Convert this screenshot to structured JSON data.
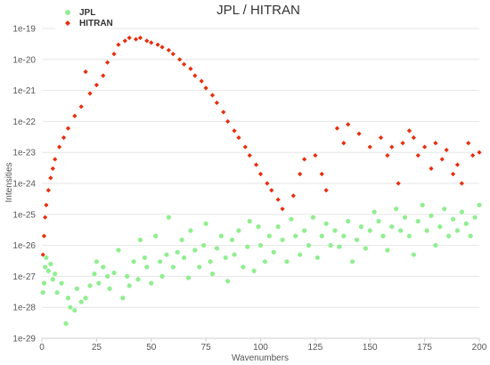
{
  "chart_data": {
    "type": "scatter",
    "title": "JPL / HITRAN",
    "xlabel": "Wavenumbers",
    "ylabel": "Intensities",
    "xlim": [
      0,
      200
    ],
    "ylim": [
      1e-29,
      1e-19
    ],
    "yscale": "log",
    "x_ticks": [
      "0",
      "25",
      "50",
      "75",
      "100",
      "125",
      "150",
      "175",
      "200"
    ],
    "y_ticks": [
      "1e-19",
      "1e-20",
      "1e-21",
      "1e-22",
      "1e-23",
      "1e-24",
      "1e-25",
      "1e-26",
      "1e-27",
      "1e-28",
      "1e-29"
    ],
    "grid": "horizontal",
    "legend_position": "top-left",
    "series": [
      {
        "name": "JPL",
        "color": "#90ee90",
        "points": [
          [
            0.5,
            3e-28
          ],
          [
            1,
            6e-28
          ],
          [
            1.5,
            2e-27
          ],
          [
            2,
            4e-27
          ],
          [
            3,
            1.5e-27
          ],
          [
            4,
            2.5e-27
          ],
          [
            5,
            8e-28
          ],
          [
            6,
            1.2e-27
          ],
          [
            7,
            3e-28
          ],
          [
            9,
            6e-28
          ],
          [
            11,
            3e-29
          ],
          [
            12,
            2e-28
          ],
          [
            13,
            1e-28
          ],
          [
            15,
            8e-29
          ],
          [
            16,
            4e-28
          ],
          [
            18,
            1.5e-28
          ],
          [
            20,
            2e-28
          ],
          [
            22,
            5e-28
          ],
          [
            24,
            1.2e-27
          ],
          [
            25,
            3e-27
          ],
          [
            26,
            6e-28
          ],
          [
            28,
            2e-27
          ],
          [
            30,
            1e-27
          ],
          [
            31,
            4e-28
          ],
          [
            33,
            1.3e-27
          ],
          [
            35,
            7e-27
          ],
          [
            37,
            2e-28
          ],
          [
            39,
            1e-27
          ],
          [
            40,
            5e-28
          ],
          [
            42,
            3e-27
          ],
          [
            44,
            8e-28
          ],
          [
            45,
            1.5e-26
          ],
          [
            47,
            4e-27
          ],
          [
            48,
            2e-27
          ],
          [
            50,
            6e-28
          ],
          [
            52,
            2e-26
          ],
          [
            54,
            3e-27
          ],
          [
            55,
            1e-27
          ],
          [
            57,
            5e-27
          ],
          [
            58,
            8e-26
          ],
          [
            60,
            2e-27
          ],
          [
            62,
            6e-27
          ],
          [
            64,
            1.5e-26
          ],
          [
            65,
            4e-27
          ],
          [
            67,
            9e-28
          ],
          [
            68,
            3e-26
          ],
          [
            70,
            7e-27
          ],
          [
            72,
            2e-27
          ],
          [
            74,
            1e-26
          ],
          [
            75,
            5e-26
          ],
          [
            77,
            3e-27
          ],
          [
            78,
            1.2e-27
          ],
          [
            80,
            8e-27
          ],
          [
            82,
            2e-26
          ],
          [
            84,
            4e-27
          ],
          [
            85,
            7e-28
          ],
          [
            87,
            1.5e-26
          ],
          [
            88,
            5e-27
          ],
          [
            90,
            3e-26
          ],
          [
            92,
            2e-27
          ],
          [
            94,
            9e-27
          ],
          [
            95,
            6e-26
          ],
          [
            97,
            1.5e-27
          ],
          [
            99,
            4e-26
          ],
          [
            100,
            1e-26
          ],
          [
            102,
            3e-27
          ],
          [
            104,
            2e-26
          ],
          [
            106,
            6e-27
          ],
          [
            108,
            4e-26
          ],
          [
            110,
            1.5e-26
          ],
          [
            112,
            3e-27
          ],
          [
            114,
            7e-26
          ],
          [
            116,
            2e-26
          ],
          [
            118,
            5e-27
          ],
          [
            120,
            3e-26
          ],
          [
            122,
            1e-26
          ],
          [
            124,
            8e-26
          ],
          [
            126,
            4e-27
          ],
          [
            128,
            2e-26
          ],
          [
            130,
            5e-26
          ],
          [
            132,
            1e-26
          ],
          [
            134,
            3e-26
          ],
          [
            136,
            9e-27
          ],
          [
            138,
            2e-26
          ],
          [
            140,
            6e-26
          ],
          [
            142,
            3e-27
          ],
          [
            144,
            1.5e-26
          ],
          [
            146,
            4e-26
          ],
          [
            148,
            8e-27
          ],
          [
            150,
            3e-26
          ],
          [
            152,
            1.2e-25
          ],
          [
            154,
            6e-26
          ],
          [
            156,
            2e-26
          ],
          [
            158,
            7e-27
          ],
          [
            160,
            4e-26
          ],
          [
            162,
            1.5e-25
          ],
          [
            164,
            3e-26
          ],
          [
            166,
            8e-26
          ],
          [
            168,
            2e-26
          ],
          [
            170,
            5e-27
          ],
          [
            172,
            6e-26
          ],
          [
            174,
            2e-25
          ],
          [
            176,
            3e-26
          ],
          [
            178,
            9e-26
          ],
          [
            180,
            1e-26
          ],
          [
            182,
            4e-26
          ],
          [
            184,
            1.5e-25
          ],
          [
            186,
            2e-26
          ],
          [
            188,
            7e-26
          ],
          [
            190,
            3e-26
          ],
          [
            192,
            1.2e-25
          ],
          [
            194,
            5e-26
          ],
          [
            196,
            2e-26
          ],
          [
            198,
            8e-26
          ],
          [
            200,
            2e-25
          ]
        ]
      },
      {
        "name": "HITRAN",
        "color": "#e82d0c",
        "points": [
          [
            0.5,
            5e-27
          ],
          [
            1,
            2e-26
          ],
          [
            1.5,
            8e-26
          ],
          [
            2,
            2e-25
          ],
          [
            3,
            6e-25
          ],
          [
            4,
            1.5e-24
          ],
          [
            5,
            3e-24
          ],
          [
            6,
            6e-24
          ],
          [
            8,
            1.5e-23
          ],
          [
            10,
            3e-23
          ],
          [
            12,
            6e-23
          ],
          [
            15,
            1.5e-22
          ],
          [
            18,
            3e-22
          ],
          [
            20,
            4e-21
          ],
          [
            22,
            8e-22
          ],
          [
            25,
            1.5e-21
          ],
          [
            28,
            3e-21
          ],
          [
            30,
            8e-21
          ],
          [
            33,
            1.5e-20
          ],
          [
            35,
            3e-20
          ],
          [
            38,
            4e-20
          ],
          [
            40,
            5e-20
          ],
          [
            43,
            4.5e-20
          ],
          [
            45,
            5e-20
          ],
          [
            48,
            4e-20
          ],
          [
            50,
            3.5e-20
          ],
          [
            53,
            3e-20
          ],
          [
            55,
            2.5e-20
          ],
          [
            58,
            2e-20
          ],
          [
            60,
            1.5e-20
          ],
          [
            63,
            1e-20
          ],
          [
            65,
            7e-21
          ],
          [
            68,
            5e-21
          ],
          [
            70,
            3e-21
          ],
          [
            73,
            2e-21
          ],
          [
            75,
            1.2e-21
          ],
          [
            78,
            7e-22
          ],
          [
            80,
            4e-22
          ],
          [
            83,
            2e-22
          ],
          [
            85,
            1e-22
          ],
          [
            88,
            5e-23
          ],
          [
            90,
            3e-23
          ],
          [
            93,
            1.5e-23
          ],
          [
            95,
            8e-24
          ],
          [
            98,
            4e-24
          ],
          [
            100,
            2e-24
          ],
          [
            103,
            1e-24
          ],
          [
            105,
            6e-25
          ],
          [
            108,
            3e-25
          ],
          [
            110,
            1.5e-25
          ],
          [
            115,
            4e-25
          ],
          [
            118,
            2e-24
          ],
          [
            120,
            6e-24
          ],
          [
            125,
            8e-24
          ],
          [
            128,
            2e-24
          ],
          [
            130,
            6e-25
          ],
          [
            135,
            6e-23
          ],
          [
            138,
            2e-23
          ],
          [
            140,
            8e-23
          ],
          [
            145,
            4e-23
          ],
          [
            150,
            1.5e-23
          ],
          [
            155,
            3e-23
          ],
          [
            158,
            8e-24
          ],
          [
            160,
            1.5e-23
          ],
          [
            163,
            1e-24
          ],
          [
            165,
            2e-23
          ],
          [
            168,
            5e-23
          ],
          [
            170,
            3e-23
          ],
          [
            172,
            8e-24
          ],
          [
            175,
            1.5e-23
          ],
          [
            178,
            3e-24
          ],
          [
            180,
            2e-23
          ],
          [
            183,
            6e-24
          ],
          [
            185,
            1.2e-23
          ],
          [
            188,
            2e-24
          ],
          [
            190,
            4e-24
          ],
          [
            192,
            1e-24
          ],
          [
            195,
            2e-23
          ],
          [
            197,
            8e-24
          ],
          [
            200,
            1e-23
          ]
        ]
      }
    ]
  }
}
